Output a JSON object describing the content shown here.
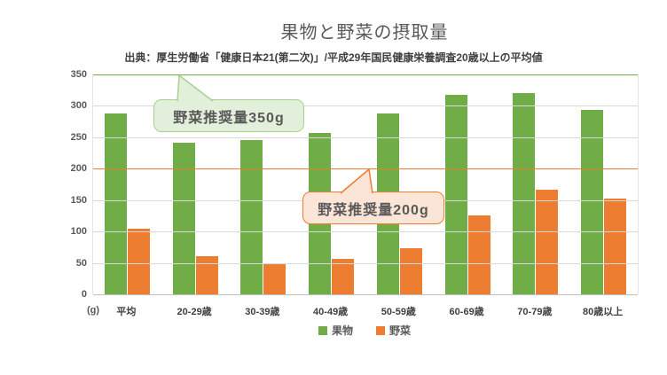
{
  "title": "果物と野菜の摂取量",
  "subtitle": "出典：厚生労働省「健康日本21(第二次)」/平成29年国民健康栄養調査20歳以上の平均値",
  "axis_unit": "(g)",
  "chart_data": {
    "type": "bar",
    "categories": [
      "平均",
      "20-29歳",
      "30-39歳",
      "40-49歳",
      "50-59歳",
      "60-69歳",
      "70-79歳",
      "80歳以上"
    ],
    "series": [
      {
        "name": "果物",
        "color": "#70AD47",
        "values": [
          288,
          242,
          245,
          257,
          288,
          318,
          320,
          293
        ]
      },
      {
        "name": "野菜",
        "color": "#ED7D31",
        "values": [
          105,
          61,
          49,
          57,
          73,
          126,
          166,
          153
        ]
      }
    ],
    "ylim": [
      0,
      350
    ],
    "ytick_step": 50,
    "ylabel": "(g)",
    "xlabel": "",
    "grid": "horizontal",
    "legend_position": "bottom",
    "reference_lines": [
      {
        "value": 350,
        "label": "野菜推奨量350g",
        "line_color": "#70AD47",
        "callout_fill": "#E2EFDA",
        "callout_border": "#A9D18E"
      },
      {
        "value": 200,
        "label": "野菜推奨量200g",
        "line_color": "#ED7D31",
        "callout_fill": "#FBE5D6",
        "callout_border": "#ED7D31"
      }
    ]
  },
  "colors": {
    "gridline": "#D9D9D9",
    "axis_line": "#BFBFBF",
    "title_text": "#595959",
    "subtitle_text": "#404040"
  }
}
